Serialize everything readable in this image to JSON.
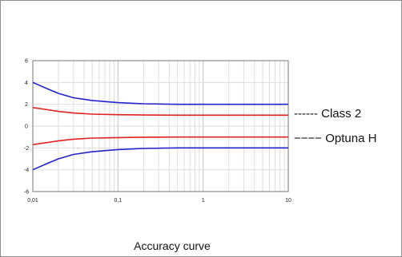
{
  "chart_data": {
    "type": "line",
    "title": "",
    "xlabel": "",
    "ylabel": "",
    "x_scale": "log",
    "xlim": [
      0.01,
      10
    ],
    "ylim": [
      -6,
      6
    ],
    "grid": true,
    "x_ticks": [
      "0,01",
      "0,1",
      "1",
      "10"
    ],
    "y_ticks": [
      "6",
      "4",
      "2",
      "0",
      "-2",
      "-4",
      "-6"
    ],
    "x": [
      0.01,
      0.015,
      0.02,
      0.03,
      0.05,
      0.1,
      0.2,
      0.5,
      1,
      2,
      5,
      10
    ],
    "series": [
      {
        "role": "Class 2 upper",
        "color": "#2222cc",
        "values": [
          4.0,
          3.4,
          3.0,
          2.6,
          2.35,
          2.15,
          2.05,
          2.0,
          2.0,
          2.0,
          2.0,
          2.0
        ]
      },
      {
        "role": "Class 2 lower",
        "color": "#2222cc",
        "values": [
          -4.0,
          -3.4,
          -3.0,
          -2.6,
          -2.35,
          -2.15,
          -2.05,
          -2.0,
          -2.0,
          -2.0,
          -2.0,
          -2.0
        ]
      },
      {
        "role": "Optuna H upper",
        "color": "#e02020",
        "values": [
          1.7,
          1.5,
          1.35,
          1.2,
          1.1,
          1.05,
          1.02,
          1.0,
          1.0,
          1.0,
          1.0,
          1.0
        ]
      },
      {
        "role": "Optuna H lower",
        "color": "#e02020",
        "values": [
          -1.7,
          -1.5,
          -1.35,
          -1.2,
          -1.1,
          -1.05,
          -1.02,
          -1.0,
          -1.0,
          -1.0,
          -1.0,
          -1.0
        ]
      }
    ],
    "legend": [
      {
        "label": "------ Class 2",
        "color": "#2222cc"
      },
      {
        "label": "−−−− Optuna H",
        "color": "#e02020"
      }
    ],
    "legend_placement": "right"
  },
  "caption": "Accuracy curve"
}
